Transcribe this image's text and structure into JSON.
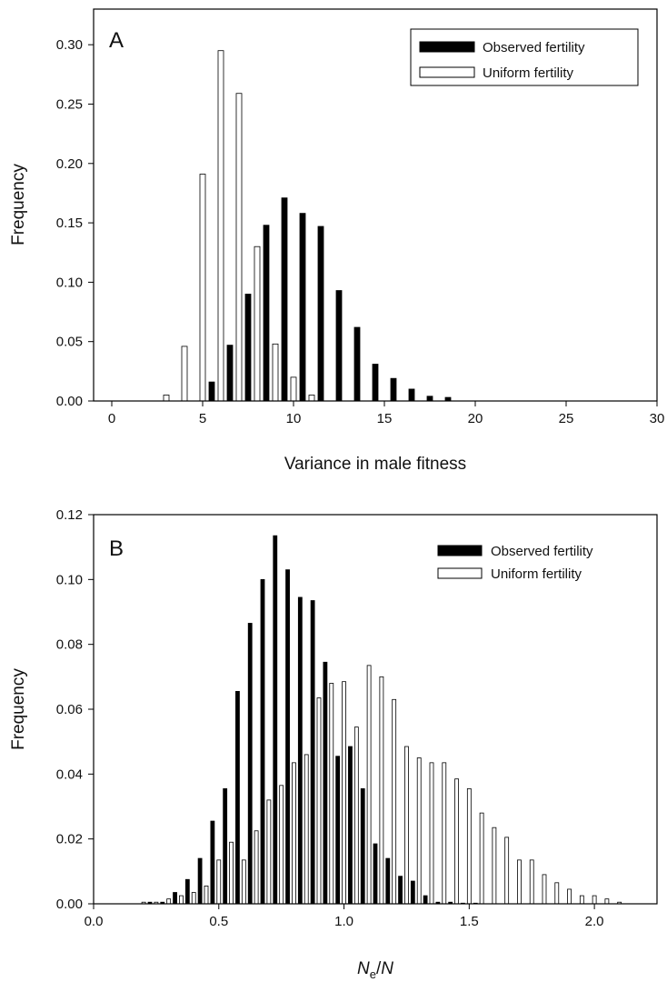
{
  "chart_data": [
    {
      "type": "bar",
      "panel_label": "A",
      "xlabel": "Variance in male fitness",
      "ylabel": "Frequency",
      "xlim": [
        -1,
        30
      ],
      "ylim": [
        0,
        0.33
      ],
      "xticks": [
        0,
        5,
        10,
        15,
        20,
        25,
        30
      ],
      "xtick_labels": [
        "0",
        "5",
        "10",
        "15",
        "20",
        "25",
        "30"
      ],
      "yticks": [
        0,
        0.05,
        0.1,
        0.15,
        0.2,
        0.25,
        0.3
      ],
      "ytick_labels": [
        "0.00",
        "0.05",
        "0.10",
        "0.15",
        "0.20",
        "0.25",
        "0.30"
      ],
      "legend": "top-right",
      "grid": false,
      "bin_width": 1,
      "x": [
        3,
        4,
        5,
        6,
        7,
        8,
        9,
        10,
        11,
        12,
        13,
        14,
        15,
        16,
        17,
        18
      ],
      "series": [
        {
          "name": "Observed fertility",
          "fill": "#000000",
          "values": [
            0,
            0,
            0.016,
            0.047,
            0.09,
            0.148,
            0.171,
            0.158,
            0.147,
            0.093,
            0.062,
            0.031,
            0.019,
            0.01,
            0.004,
            0.003
          ]
        },
        {
          "name": "Uniform fertility",
          "fill": "#ffffff",
          "values": [
            0.005,
            0.046,
            0.191,
            0.295,
            0.259,
            0.13,
            0.048,
            0.02,
            0.005,
            0,
            0,
            0,
            0,
            0,
            0,
            0
          ]
        }
      ]
    },
    {
      "type": "bar",
      "panel_label": "B",
      "xlabel": "Ne/N",
      "xlabel_parts": {
        "n1": "N",
        "sub": "e",
        "slash": "/",
        "n2": "N"
      },
      "ylabel": "Frequency",
      "xlim": [
        0,
        2.25
      ],
      "ylim": [
        0,
        0.12
      ],
      "xticks": [
        0,
        0.5,
        1,
        1.5,
        2
      ],
      "xtick_labels": [
        "0.0",
        "0.5",
        "1.0",
        "1.5",
        "2.0"
      ],
      "yticks": [
        0,
        0.02,
        0.04,
        0.06,
        0.08,
        0.1,
        0.12
      ],
      "ytick_labels": [
        "0.00",
        "0.02",
        "0.04",
        "0.06",
        "0.08",
        "0.10",
        "0.12"
      ],
      "legend": "top-right",
      "grid": false,
      "bin_width": 0.05,
      "x": [
        0.2,
        0.25,
        0.3,
        0.35,
        0.4,
        0.45,
        0.5,
        0.55,
        0.6,
        0.65,
        0.7,
        0.75,
        0.8,
        0.85,
        0.9,
        0.95,
        1.0,
        1.05,
        1.1,
        1.15,
        1.2,
        1.25,
        1.3,
        1.35,
        1.4,
        1.45,
        1.5,
        1.55,
        1.6,
        1.65,
        1.7,
        1.75,
        1.8,
        1.85,
        1.9,
        1.95,
        2.0,
        2.05,
        2.1
      ],
      "series": [
        {
          "name": "Observed fertility",
          "fill": "#000000",
          "values": [
            0.0005,
            0.0005,
            0.0035,
            0.0075,
            0.014,
            0.0255,
            0.0355,
            0.0655,
            0.0865,
            0.1,
            0.1135,
            0.103,
            0.0945,
            0.0935,
            0.0745,
            0.0455,
            0.0485,
            0.0355,
            0.0185,
            0.014,
            0.0085,
            0.007,
            0.0025,
            0.0005,
            0.0005,
            0.0002,
            0.0002,
            0,
            0,
            0,
            0,
            0,
            0,
            0,
            0,
            0,
            0,
            0,
            0
          ]
        },
        {
          "name": "Uniform fertility",
          "fill": "#ffffff",
          "values": [
            0.0005,
            0.0005,
            0.0015,
            0.0025,
            0.0035,
            0.0055,
            0.0135,
            0.019,
            0.0135,
            0.0225,
            0.032,
            0.0365,
            0.0435,
            0.046,
            0.0635,
            0.068,
            0.0685,
            0.0545,
            0.0735,
            0.07,
            0.063,
            0.0485,
            0.045,
            0.0435,
            0.0435,
            0.0385,
            0.0355,
            0.028,
            0.0235,
            0.0205,
            0.0135,
            0.0135,
            0.009,
            0.0065,
            0.0045,
            0.0025,
            0.0025,
            0.0015,
            0.0005
          ]
        }
      ]
    }
  ]
}
